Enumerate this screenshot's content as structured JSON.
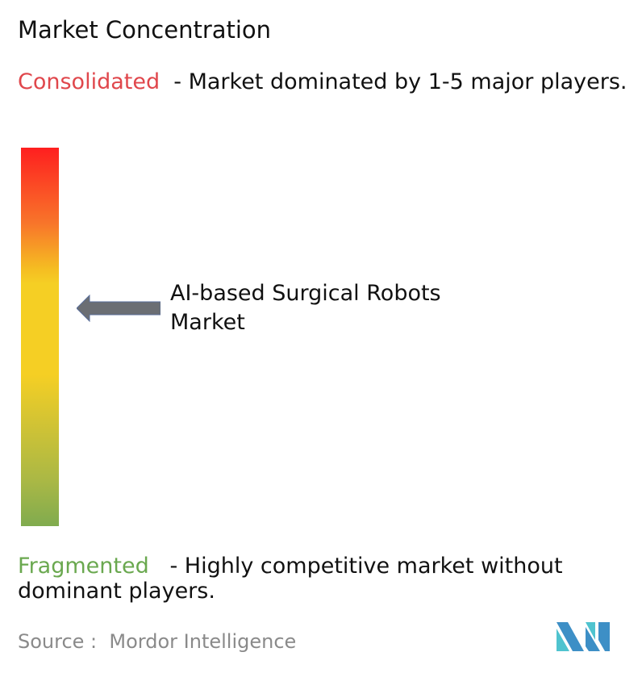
{
  "title": "Market Concentration",
  "consolidated": {
    "label": "Consolidated",
    "text": "  - Market dominated by 1-5 major players.",
    "color": "#e0474c"
  },
  "fragmented": {
    "label": "Fragmented",
    "text": "   - Highly competitive market without dominant players.",
    "color": "#6aa84f"
  },
  "marker": {
    "label": "AI-based Surgical Robots Market",
    "icon": "arrow-left-icon"
  },
  "source": "Source :  Mordor Intelligence",
  "logo": {
    "text": "Mordor Intelligence",
    "colors": [
      "#3d8fc6",
      "#4fc3cf"
    ]
  }
}
